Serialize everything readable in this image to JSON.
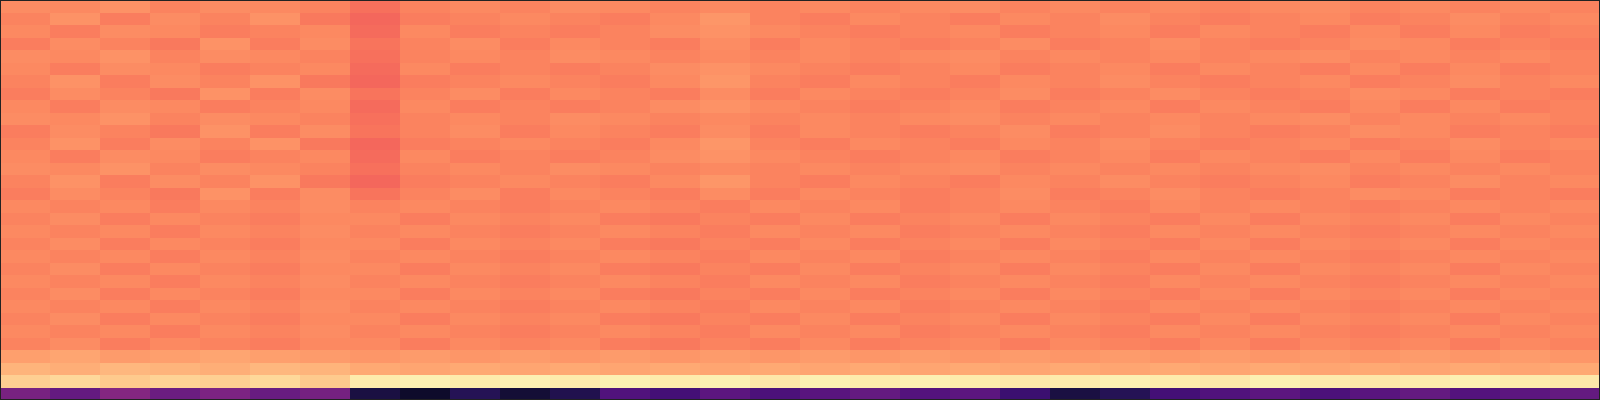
{
  "chart_data": {
    "type": "heatmap",
    "color": "magma",
    "tick_labels": false,
    "zlim": [
      0,
      1
    ],
    "z": [
      [
        0.76,
        0.75,
        0.77,
        0.74,
        0.76,
        0.75,
        0.74,
        0.7,
        0.74,
        0.75,
        0.74,
        0.76,
        0.75,
        0.74,
        0.75,
        0.74,
        0.75,
        0.74,
        0.75,
        0.76,
        0.74,
        0.75,
        0.74,
        0.75,
        0.74,
        0.75,
        0.76,
        0.74,
        0.75,
        0.74,
        0.75,
        0.74
      ],
      [
        0.74,
        0.77,
        0.73,
        0.76,
        0.74,
        0.77,
        0.72,
        0.68,
        0.73,
        0.74,
        0.75,
        0.74,
        0.73,
        0.75,
        0.78,
        0.74,
        0.73,
        0.75,
        0.74,
        0.73,
        0.75,
        0.74,
        0.76,
        0.74,
        0.73,
        0.74,
        0.75,
        0.73,
        0.74,
        0.76,
        0.74,
        0.75
      ],
      [
        0.75,
        0.73,
        0.76,
        0.75,
        0.73,
        0.74,
        0.75,
        0.69,
        0.75,
        0.73,
        0.74,
        0.73,
        0.74,
        0.76,
        0.77,
        0.75,
        0.74,
        0.73,
        0.74,
        0.75,
        0.73,
        0.74,
        0.75,
        0.73,
        0.75,
        0.74,
        0.73,
        0.75,
        0.73,
        0.75,
        0.73,
        0.74
      ],
      [
        0.73,
        0.76,
        0.74,
        0.72,
        0.77,
        0.73,
        0.76,
        0.71,
        0.74,
        0.76,
        0.73,
        0.75,
        0.74,
        0.73,
        0.76,
        0.73,
        0.75,
        0.74,
        0.73,
        0.74,
        0.76,
        0.73,
        0.74,
        0.76,
        0.74,
        0.73,
        0.74,
        0.76,
        0.75,
        0.73,
        0.74,
        0.73
      ],
      [
        0.76,
        0.75,
        0.77,
        0.74,
        0.76,
        0.75,
        0.74,
        0.7,
        0.74,
        0.75,
        0.74,
        0.76,
        0.75,
        0.74,
        0.75,
        0.74,
        0.75,
        0.74,
        0.75,
        0.76,
        0.74,
        0.75,
        0.74,
        0.75,
        0.74,
        0.75,
        0.76,
        0.74,
        0.75,
        0.74,
        0.75,
        0.74
      ],
      [
        0.75,
        0.73,
        0.76,
        0.75,
        0.73,
        0.74,
        0.75,
        0.69,
        0.75,
        0.73,
        0.74,
        0.73,
        0.74,
        0.76,
        0.77,
        0.75,
        0.74,
        0.73,
        0.74,
        0.75,
        0.73,
        0.74,
        0.75,
        0.73,
        0.75,
        0.74,
        0.73,
        0.75,
        0.73,
        0.75,
        0.73,
        0.74
      ],
      [
        0.74,
        0.77,
        0.73,
        0.76,
        0.74,
        0.77,
        0.72,
        0.68,
        0.73,
        0.74,
        0.75,
        0.74,
        0.73,
        0.75,
        0.78,
        0.74,
        0.73,
        0.75,
        0.74,
        0.73,
        0.75,
        0.74,
        0.76,
        0.74,
        0.73,
        0.74,
        0.75,
        0.73,
        0.74,
        0.76,
        0.74,
        0.75
      ],
      [
        0.73,
        0.76,
        0.74,
        0.72,
        0.77,
        0.73,
        0.76,
        0.71,
        0.74,
        0.76,
        0.73,
        0.75,
        0.74,
        0.73,
        0.76,
        0.73,
        0.75,
        0.74,
        0.73,
        0.74,
        0.76,
        0.73,
        0.74,
        0.76,
        0.74,
        0.73,
        0.74,
        0.76,
        0.75,
        0.73,
        0.74,
        0.73
      ],
      [
        0.75,
        0.73,
        0.76,
        0.75,
        0.73,
        0.74,
        0.75,
        0.69,
        0.75,
        0.73,
        0.74,
        0.73,
        0.74,
        0.76,
        0.77,
        0.75,
        0.74,
        0.73,
        0.74,
        0.75,
        0.73,
        0.74,
        0.75,
        0.73,
        0.75,
        0.74,
        0.73,
        0.75,
        0.73,
        0.75,
        0.73,
        0.74
      ],
      [
        0.76,
        0.75,
        0.77,
        0.74,
        0.76,
        0.75,
        0.74,
        0.7,
        0.74,
        0.75,
        0.74,
        0.76,
        0.75,
        0.74,
        0.75,
        0.74,
        0.75,
        0.74,
        0.75,
        0.76,
        0.74,
        0.75,
        0.74,
        0.75,
        0.74,
        0.75,
        0.76,
        0.74,
        0.75,
        0.74,
        0.75,
        0.74
      ],
      [
        0.73,
        0.76,
        0.74,
        0.72,
        0.77,
        0.73,
        0.76,
        0.71,
        0.74,
        0.76,
        0.73,
        0.75,
        0.74,
        0.73,
        0.76,
        0.73,
        0.75,
        0.74,
        0.73,
        0.74,
        0.76,
        0.73,
        0.74,
        0.76,
        0.74,
        0.73,
        0.74,
        0.76,
        0.75,
        0.73,
        0.74,
        0.73
      ],
      [
        0.74,
        0.77,
        0.73,
        0.76,
        0.74,
        0.77,
        0.72,
        0.68,
        0.73,
        0.74,
        0.75,
        0.74,
        0.73,
        0.75,
        0.78,
        0.74,
        0.73,
        0.75,
        0.74,
        0.73,
        0.75,
        0.74,
        0.76,
        0.74,
        0.73,
        0.74,
        0.75,
        0.73,
        0.74,
        0.76,
        0.74,
        0.75
      ],
      [
        0.75,
        0.73,
        0.76,
        0.75,
        0.73,
        0.74,
        0.75,
        0.69,
        0.75,
        0.73,
        0.74,
        0.73,
        0.74,
        0.76,
        0.77,
        0.75,
        0.74,
        0.73,
        0.74,
        0.75,
        0.73,
        0.74,
        0.75,
        0.73,
        0.75,
        0.74,
        0.73,
        0.75,
        0.73,
        0.75,
        0.73,
        0.74
      ],
      [
        0.76,
        0.75,
        0.77,
        0.74,
        0.76,
        0.75,
        0.74,
        0.7,
        0.74,
        0.75,
        0.74,
        0.76,
        0.75,
        0.74,
        0.75,
        0.74,
        0.75,
        0.74,
        0.75,
        0.76,
        0.74,
        0.75,
        0.74,
        0.75,
        0.74,
        0.75,
        0.76,
        0.74,
        0.75,
        0.74,
        0.75,
        0.74
      ],
      [
        0.74,
        0.77,
        0.73,
        0.76,
        0.74,
        0.77,
        0.72,
        0.68,
        0.73,
        0.74,
        0.75,
        0.74,
        0.73,
        0.75,
        0.78,
        0.74,
        0.73,
        0.75,
        0.74,
        0.73,
        0.75,
        0.74,
        0.76,
        0.74,
        0.73,
        0.74,
        0.75,
        0.73,
        0.74,
        0.76,
        0.74,
        0.75
      ],
      [
        0.73,
        0.76,
        0.74,
        0.72,
        0.77,
        0.73,
        0.76,
        0.71,
        0.74,
        0.76,
        0.73,
        0.75,
        0.74,
        0.73,
        0.76,
        0.73,
        0.75,
        0.74,
        0.73,
        0.74,
        0.76,
        0.73,
        0.74,
        0.76,
        0.74,
        0.73,
        0.74,
        0.76,
        0.75,
        0.73,
        0.74,
        0.73
      ],
      [
        0.75,
        0.74,
        0.75,
        0.73,
        0.75,
        0.74,
        0.76,
        0.74,
        0.75,
        0.74,
        0.73,
        0.74,
        0.75,
        0.74,
        0.73,
        0.75,
        0.74,
        0.75,
        0.73,
        0.74,
        0.75,
        0.74,
        0.73,
        0.75,
        0.74,
        0.75,
        0.74,
        0.73,
        0.74,
        0.75,
        0.74,
        0.75
      ],
      [
        0.74,
        0.76,
        0.73,
        0.75,
        0.74,
        0.73,
        0.75,
        0.75,
        0.73,
        0.75,
        0.74,
        0.75,
        0.73,
        0.72,
        0.74,
        0.73,
        0.75,
        0.73,
        0.74,
        0.75,
        0.73,
        0.75,
        0.74,
        0.73,
        0.75,
        0.73,
        0.75,
        0.74,
        0.75,
        0.73,
        0.75,
        0.74
      ],
      [
        0.75,
        0.74,
        0.75,
        0.73,
        0.75,
        0.74,
        0.76,
        0.74,
        0.75,
        0.74,
        0.73,
        0.74,
        0.75,
        0.74,
        0.73,
        0.75,
        0.74,
        0.75,
        0.73,
        0.74,
        0.75,
        0.74,
        0.73,
        0.75,
        0.74,
        0.75,
        0.74,
        0.73,
        0.74,
        0.75,
        0.74,
        0.75
      ],
      [
        0.74,
        0.76,
        0.73,
        0.75,
        0.74,
        0.73,
        0.75,
        0.75,
        0.73,
        0.75,
        0.74,
        0.75,
        0.73,
        0.72,
        0.74,
        0.73,
        0.75,
        0.73,
        0.74,
        0.75,
        0.73,
        0.75,
        0.74,
        0.73,
        0.75,
        0.73,
        0.75,
        0.74,
        0.75,
        0.73,
        0.75,
        0.74
      ],
      [
        0.75,
        0.74,
        0.75,
        0.73,
        0.75,
        0.74,
        0.76,
        0.74,
        0.75,
        0.74,
        0.73,
        0.74,
        0.75,
        0.74,
        0.73,
        0.75,
        0.74,
        0.75,
        0.73,
        0.74,
        0.75,
        0.74,
        0.73,
        0.75,
        0.74,
        0.75,
        0.74,
        0.73,
        0.74,
        0.75,
        0.74,
        0.75
      ],
      [
        0.74,
        0.76,
        0.73,
        0.75,
        0.74,
        0.73,
        0.75,
        0.75,
        0.73,
        0.75,
        0.74,
        0.75,
        0.73,
        0.72,
        0.74,
        0.73,
        0.75,
        0.73,
        0.74,
        0.75,
        0.73,
        0.75,
        0.74,
        0.73,
        0.75,
        0.73,
        0.75,
        0.74,
        0.75,
        0.73,
        0.75,
        0.74
      ],
      [
        0.75,
        0.74,
        0.75,
        0.73,
        0.75,
        0.74,
        0.76,
        0.74,
        0.75,
        0.74,
        0.73,
        0.74,
        0.75,
        0.74,
        0.73,
        0.75,
        0.74,
        0.75,
        0.73,
        0.74,
        0.75,
        0.74,
        0.73,
        0.75,
        0.74,
        0.75,
        0.74,
        0.73,
        0.74,
        0.75,
        0.74,
        0.75
      ],
      [
        0.74,
        0.76,
        0.73,
        0.75,
        0.74,
        0.73,
        0.75,
        0.75,
        0.73,
        0.75,
        0.74,
        0.75,
        0.73,
        0.72,
        0.74,
        0.73,
        0.75,
        0.73,
        0.74,
        0.75,
        0.73,
        0.75,
        0.74,
        0.73,
        0.75,
        0.73,
        0.75,
        0.74,
        0.75,
        0.73,
        0.75,
        0.74
      ],
      [
        0.75,
        0.74,
        0.75,
        0.73,
        0.75,
        0.74,
        0.76,
        0.74,
        0.75,
        0.74,
        0.73,
        0.74,
        0.75,
        0.74,
        0.73,
        0.75,
        0.74,
        0.75,
        0.73,
        0.74,
        0.75,
        0.74,
        0.73,
        0.75,
        0.74,
        0.75,
        0.74,
        0.73,
        0.74,
        0.75,
        0.74,
        0.75
      ],
      [
        0.74,
        0.76,
        0.73,
        0.75,
        0.74,
        0.73,
        0.75,
        0.75,
        0.73,
        0.75,
        0.74,
        0.75,
        0.73,
        0.72,
        0.74,
        0.73,
        0.75,
        0.73,
        0.74,
        0.75,
        0.73,
        0.75,
        0.74,
        0.73,
        0.75,
        0.73,
        0.75,
        0.74,
        0.75,
        0.73,
        0.75,
        0.74
      ],
      [
        0.75,
        0.74,
        0.75,
        0.73,
        0.75,
        0.74,
        0.76,
        0.74,
        0.75,
        0.74,
        0.73,
        0.74,
        0.75,
        0.74,
        0.73,
        0.75,
        0.74,
        0.75,
        0.73,
        0.74,
        0.75,
        0.74,
        0.73,
        0.75,
        0.74,
        0.75,
        0.74,
        0.73,
        0.74,
        0.75,
        0.74,
        0.75
      ],
      [
        0.74,
        0.76,
        0.73,
        0.75,
        0.74,
        0.73,
        0.75,
        0.75,
        0.73,
        0.75,
        0.74,
        0.75,
        0.73,
        0.72,
        0.74,
        0.73,
        0.75,
        0.73,
        0.74,
        0.75,
        0.73,
        0.75,
        0.74,
        0.73,
        0.75,
        0.73,
        0.75,
        0.74,
        0.75,
        0.73,
        0.75,
        0.74
      ],
      [
        0.8,
        0.81,
        0.79,
        0.8,
        0.81,
        0.8,
        0.79,
        0.78,
        0.79,
        0.78,
        0.79,
        0.78,
        0.79,
        0.78,
        0.79,
        0.78,
        0.79,
        0.78,
        0.79,
        0.78,
        0.79,
        0.78,
        0.79,
        0.78,
        0.79,
        0.78,
        0.79,
        0.78,
        0.79,
        0.78,
        0.79,
        0.78
      ],
      [
        0.84,
        0.83,
        0.85,
        0.84,
        0.83,
        0.85,
        0.84,
        0.82,
        0.81,
        0.82,
        0.81,
        0.82,
        0.81,
        0.82,
        0.81,
        0.82,
        0.81,
        0.82,
        0.81,
        0.82,
        0.81,
        0.82,
        0.81,
        0.82,
        0.81,
        0.82,
        0.81,
        0.82,
        0.81,
        0.82,
        0.81,
        0.82
      ],
      [
        0.9,
        0.92,
        0.89,
        0.91,
        0.9,
        0.92,
        0.89,
        0.96,
        0.97,
        0.96,
        0.97,
        0.96,
        0.97,
        0.96,
        0.97,
        0.95,
        0.97,
        0.96,
        0.97,
        0.96,
        0.95,
        0.96,
        0.97,
        0.96,
        0.95,
        0.97,
        0.96,
        0.95,
        0.96,
        0.97,
        0.96,
        0.95
      ],
      [
        0.35,
        0.3,
        0.38,
        0.32,
        0.36,
        0.31,
        0.34,
        0.12,
        0.08,
        0.15,
        0.1,
        0.14,
        0.25,
        0.22,
        0.28,
        0.24,
        0.27,
        0.3,
        0.26,
        0.28,
        0.2,
        0.12,
        0.15,
        0.22,
        0.25,
        0.28,
        0.24,
        0.27,
        0.3,
        0.26,
        0.28,
        0.3
      ]
    ]
  }
}
